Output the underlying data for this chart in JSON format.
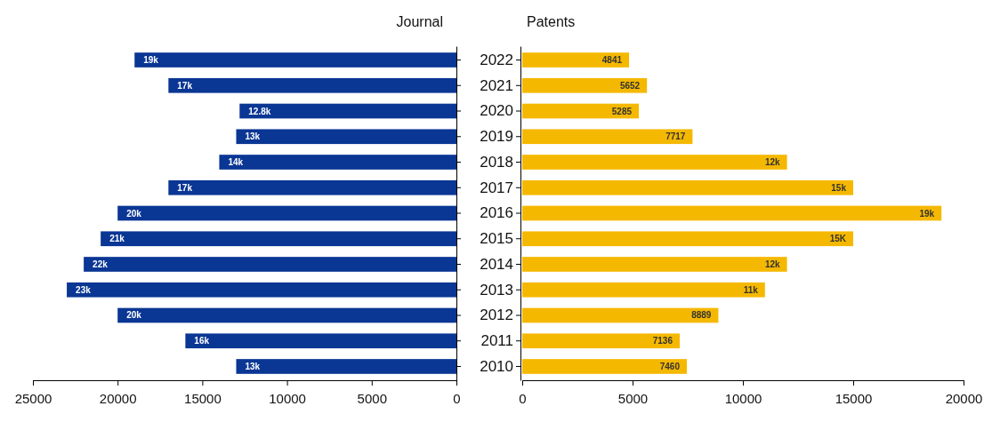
{
  "chart_data": [
    {
      "type": "bar",
      "orientation": "horizontal",
      "title": "Journal",
      "categories": [
        "2022",
        "2021",
        "2020",
        "2019",
        "2018",
        "2017",
        "2016",
        "2015",
        "2014",
        "2013",
        "2012",
        "2011",
        "2010"
      ],
      "values": [
        19000,
        17000,
        12800,
        13000,
        14000,
        17000,
        20000,
        21000,
        22000,
        23000,
        20000,
        16000,
        13000
      ],
      "value_labels": [
        "19k",
        "17k",
        "12.8k",
        "13k",
        "14k",
        "17k",
        "20k",
        "21k",
        "22k",
        "23k",
        "20k",
        "16k",
        "13k"
      ],
      "color": "#0a3694",
      "xlim": [
        25000,
        0
      ],
      "xticks": [
        25000,
        20000,
        15000,
        10000,
        5000,
        0
      ],
      "tick_labels": "x",
      "grid": false
    },
    {
      "type": "bar",
      "orientation": "horizontal",
      "title": "Patents",
      "categories": [
        "2022",
        "2021",
        "2020",
        "2019",
        "2018",
        "2017",
        "2016",
        "2015",
        "2014",
        "2013",
        "2012",
        "2011",
        "2010"
      ],
      "values": [
        4841,
        5652,
        5285,
        7717,
        12000,
        15000,
        19000,
        15000,
        12000,
        11000,
        8889,
        7136,
        7460
      ],
      "value_labels": [
        "4841",
        "5652",
        "5285",
        "7717",
        "12k",
        "15k",
        "19k",
        "15K",
        "12k",
        "11k",
        "8889",
        "7136",
        "7460"
      ],
      "color": "#f5b800",
      "xlim": [
        0,
        20000
      ],
      "xticks": [
        0,
        5000,
        10000,
        15000,
        20000
      ],
      "grid": false
    }
  ]
}
